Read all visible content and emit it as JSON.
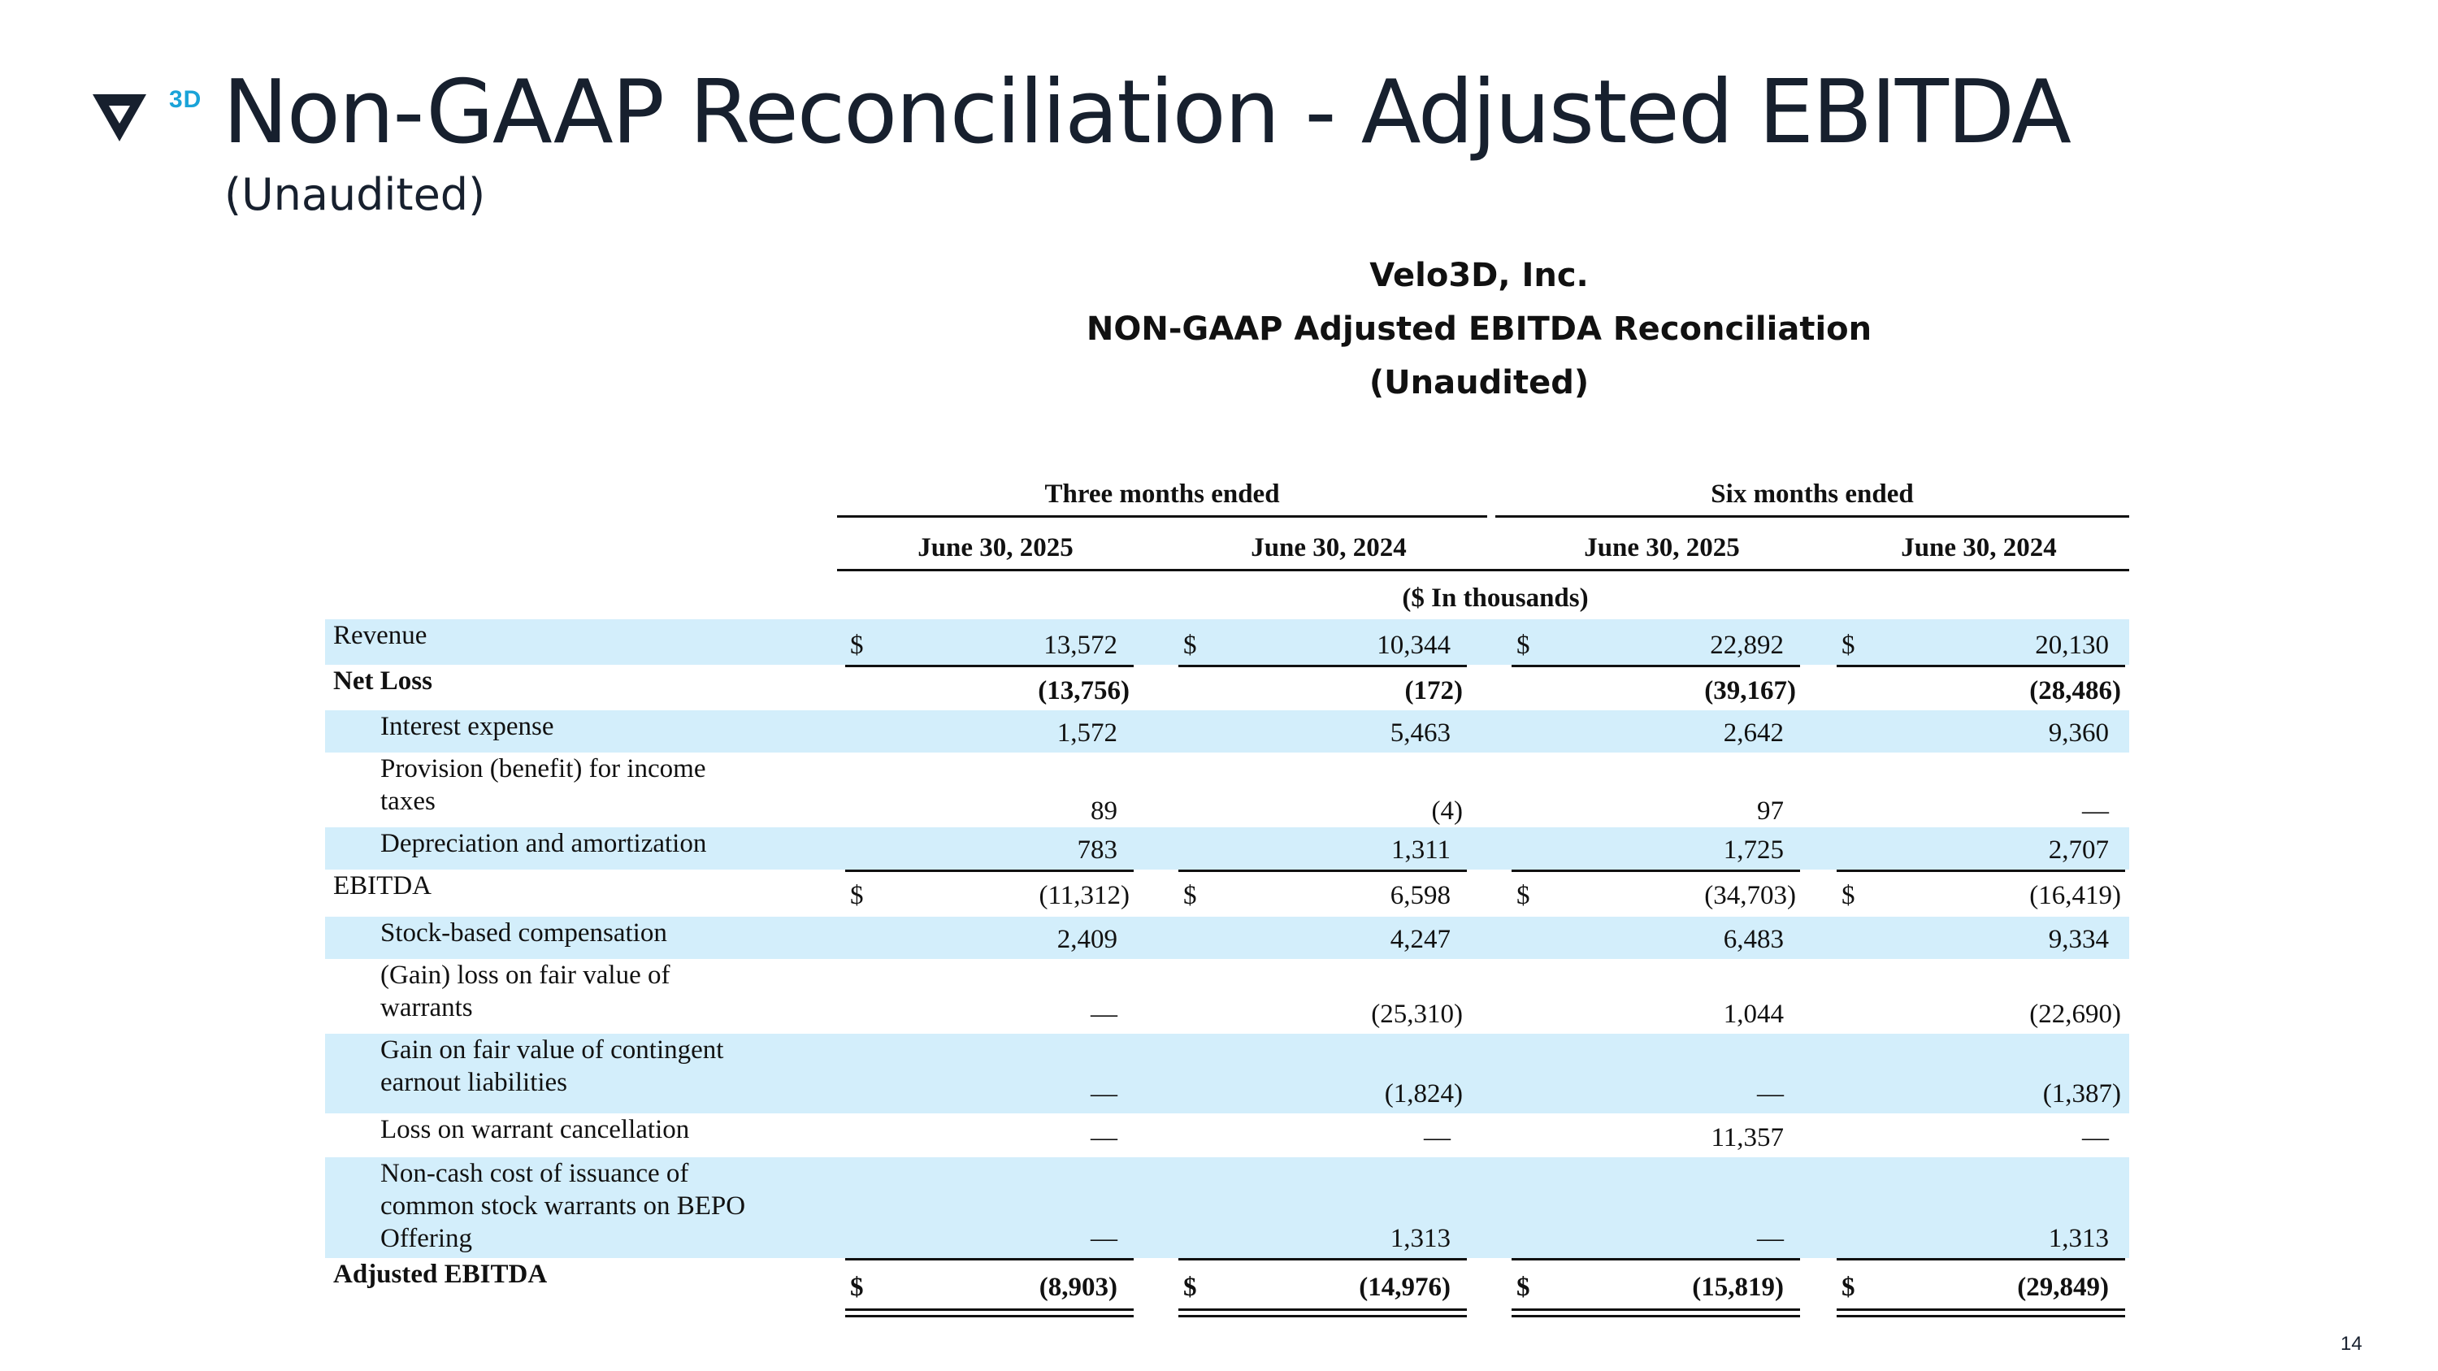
{
  "header": {
    "logo_text": "3D",
    "title": "Non-GAAP Reconciliation - Adjusted EBITDA",
    "subtitle": "(Unaudited)"
  },
  "document": {
    "company": "Velo3D, Inc.",
    "heading": "NON-GAAP Adjusted EBITDA Reconciliation",
    "subheading": "(Unaudited)"
  },
  "table": {
    "group_headers": [
      "Three months ended",
      "Six months ended"
    ],
    "columns": [
      "June 30, 2025",
      "June 30, 2024",
      "June 30, 2025",
      "June 30, 2024"
    ],
    "units": "($ In thousands)",
    "currency_symbol": "$",
    "rows": [
      {
        "label": "Revenue",
        "values": [
          "13,572",
          "10,344",
          "22,892",
          "20,130"
        ]
      },
      {
        "label": "Net Loss",
        "values": [
          "(13,756)",
          "(172)",
          "(39,167)",
          "(28,486)"
        ]
      },
      {
        "label": "Interest expense",
        "values": [
          "1,572",
          "5,463",
          "2,642",
          "9,360"
        ]
      },
      {
        "label": "Provision (benefit) for income taxes",
        "values": [
          "89",
          "(4)",
          "97",
          "—"
        ]
      },
      {
        "label": "Depreciation and amortization",
        "values": [
          "783",
          "1,311",
          "1,725",
          "2,707"
        ]
      },
      {
        "label": "EBITDA",
        "values": [
          "(11,312)",
          "6,598",
          "(34,703)",
          "(16,419)"
        ]
      },
      {
        "label": "Stock-based compensation",
        "values": [
          "2,409",
          "4,247",
          "6,483",
          "9,334"
        ]
      },
      {
        "label": "(Gain) loss on fair value of warrants",
        "values": [
          "—",
          "(25,310)",
          "1,044",
          "(22,690)"
        ]
      },
      {
        "label": "Gain on fair value of contingent earnout liabilities",
        "values": [
          "—",
          "(1,824)",
          "—",
          "(1,387)"
        ]
      },
      {
        "label": "Loss on warrant cancellation",
        "values": [
          "—",
          "—",
          "11,357",
          "—"
        ]
      },
      {
        "label": "Non-cash cost of issuance of common stock warrants on BEPO Offering",
        "values": [
          "—",
          "1,313",
          "—",
          "1,313"
        ]
      },
      {
        "label": "Adjusted EBITDA",
        "values": [
          "(8,903)",
          "(14,976)",
          "(15,819)",
          "(29,849)"
        ]
      }
    ]
  },
  "footer": {
    "page_number": "14"
  }
}
